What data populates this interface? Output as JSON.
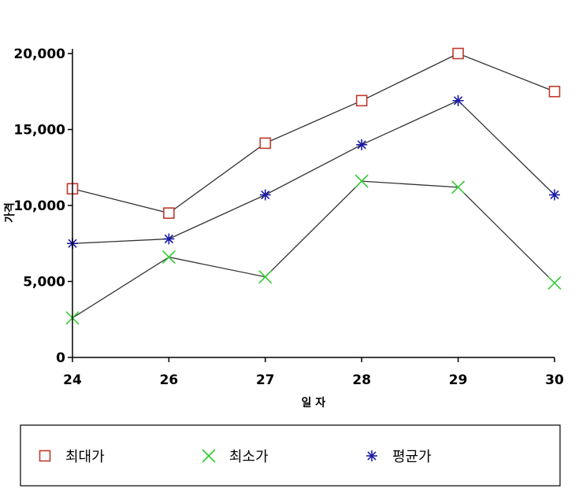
{
  "chart_data": {
    "type": "line",
    "categories": [
      "24",
      "26",
      "27",
      "28",
      "29",
      "30"
    ],
    "ylim": [
      0,
      20000
    ],
    "yticks": [
      0,
      5000,
      10000,
      15000,
      20000
    ],
    "ytick_labels": [
      "0",
      "5,000",
      "10,000",
      "15,000",
      "20,000"
    ],
    "xlabel": "일 자",
    "ylabel": "가격",
    "grid": false,
    "legend_position": "bottom",
    "series": [
      {
        "name": "최대가",
        "marker": "square",
        "color": "#c0392b",
        "values": [
          11100,
          9500,
          14100,
          16900,
          20000,
          17500
        ]
      },
      {
        "name": "최소가",
        "marker": "x",
        "color": "#33cc33",
        "values": [
          2600,
          6600,
          5300,
          11600,
          11200,
          4900
        ]
      },
      {
        "name": "평균가",
        "marker": "asterisk",
        "color": "#1a1aa6",
        "values": [
          7500,
          7800,
          10700,
          14000,
          16900,
          10700
        ]
      }
    ]
  }
}
